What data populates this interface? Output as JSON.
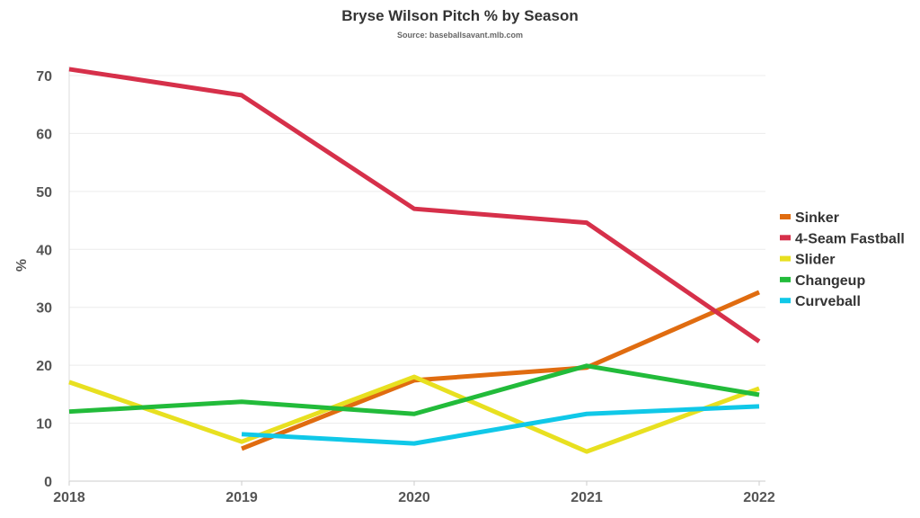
{
  "chart_data": {
    "type": "line",
    "title": "Bryse Wilson Pitch % by Season",
    "subtitle": "Source: baseballsavant.mlb.com",
    "xlabel": "",
    "ylabel": "%",
    "x": [
      "2018",
      "2019",
      "2020",
      "2021",
      "2022"
    ],
    "ylim": [
      0,
      70
    ],
    "yticks": [
      0,
      10,
      20,
      30,
      40,
      50,
      60,
      70
    ],
    "grid": true,
    "legend_position": "right",
    "series": [
      {
        "name": "Sinker",
        "color": "#e06c10",
        "values": [
          null,
          5.6,
          17.4,
          19.6,
          32.6
        ]
      },
      {
        "name": "4-Seam Fastball",
        "color": "#d6304a",
        "values": [
          71.1,
          66.6,
          47.0,
          44.6,
          24.1
        ]
      },
      {
        "name": "Slider",
        "color": "#e8e020",
        "values": [
          17.1,
          6.8,
          18.0,
          5.1,
          16.0
        ]
      },
      {
        "name": "Changeup",
        "color": "#22bb3a",
        "values": [
          12.0,
          13.7,
          11.6,
          19.9,
          14.9
        ]
      },
      {
        "name": "Curveball",
        "color": "#10c8e8",
        "values": [
          null,
          8.1,
          6.5,
          11.6,
          12.9
        ]
      }
    ]
  }
}
